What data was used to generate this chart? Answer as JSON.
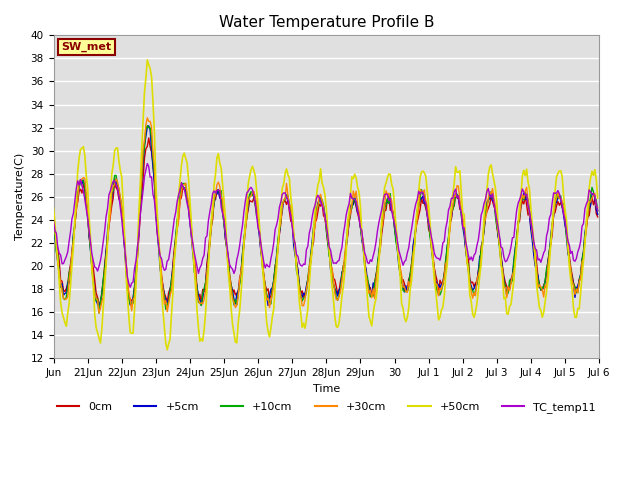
{
  "title": "Water Temperature Profile B",
  "xlabel": "Time",
  "ylabel": "Temperature(C)",
  "ylim": [
    12,
    40
  ],
  "yticks": [
    12,
    14,
    16,
    18,
    20,
    22,
    24,
    26,
    28,
    30,
    32,
    34,
    36,
    38,
    40
  ],
  "fig_bg_color": "#ffffff",
  "plot_bg_color": "#e0e0e0",
  "grid_color": "#ffffff",
  "annotation_text": "SW_met",
  "annotation_bg": "#ffff99",
  "annotation_border": "#8b0000",
  "annotation_text_color": "#8b0000",
  "lines": {
    "0cm": {
      "color": "#cc0000",
      "lw": 1.0
    },
    "+5cm": {
      "color": "#0000cc",
      "lw": 1.0
    },
    "+10cm": {
      "color": "#00aa00",
      "lw": 1.0
    },
    "+30cm": {
      "color": "#ff8800",
      "lw": 1.0
    },
    "+50cm": {
      "color": "#dddd00",
      "lw": 1.2
    },
    "TC_temp11": {
      "color": "#aa00cc",
      "lw": 1.0
    }
  },
  "xtick_labels": [
    "Jun",
    "21Jun",
    "22Jun",
    "23Jun",
    "24Jun",
    "25Jun",
    "26Jun",
    "27Jun",
    "28Jun",
    "29Jun",
    "30",
    "Jul 1",
    "Jul 2",
    "Jul 3",
    "Jul 4",
    "Jul 5",
    "Jul 6"
  ],
  "title_fontsize": 11,
  "axis_fontsize": 8,
  "tick_fontsize": 7.5
}
